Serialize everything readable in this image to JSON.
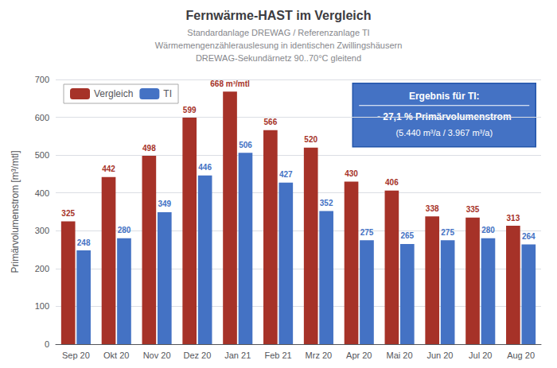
{
  "chart_data": {
    "type": "bar",
    "title": "Fernwärme-HAST im Vergleich",
    "subtitle": [
      "Standardanlage DREWAG / Referenzanlage TI",
      "Wärmemengenzählerauslesung in identischen Zwillingshäusern",
      "DREWAG-Sekundärnetz 90..70°C gleitend"
    ],
    "categories": [
      "Sep 20",
      "Okt 20",
      "Nov 20",
      "Dez 20",
      "Jan 21",
      "Feb 21",
      "Mrz 20",
      "Apr 20",
      "Mai 20",
      "Jun 20",
      "Jul 20",
      "Aug 20"
    ],
    "series": [
      {
        "name": "Vergleich",
        "color": "#A63228",
        "values": [
          325,
          442,
          498,
          599,
          668,
          566,
          520,
          430,
          406,
          338,
          335,
          313
        ],
        "value_labels": [
          "325",
          "442",
          "498",
          "599",
          "668 m³/mtl",
          "566",
          "520",
          "430",
          "406",
          "338",
          "335",
          "313"
        ]
      },
      {
        "name": "TI",
        "color": "#4472C4",
        "values": [
          248,
          280,
          349,
          446,
          506,
          427,
          352,
          275,
          265,
          275,
          280,
          264
        ]
      }
    ],
    "ylabel": "Primärvolumenstrom [m³/mtl]",
    "ylim": [
      0,
      700
    ],
    "yticks": [
      0,
      100,
      200,
      300,
      400,
      500,
      600,
      700
    ],
    "grid": true,
    "legend": "upper left",
    "data_labels": true,
    "annotations": [
      "Ergebnis für TI:",
      "- 27,1 % Primärvolumenstrom",
      "(5.440 m³/a / 3.967 m³/a)"
    ]
  }
}
